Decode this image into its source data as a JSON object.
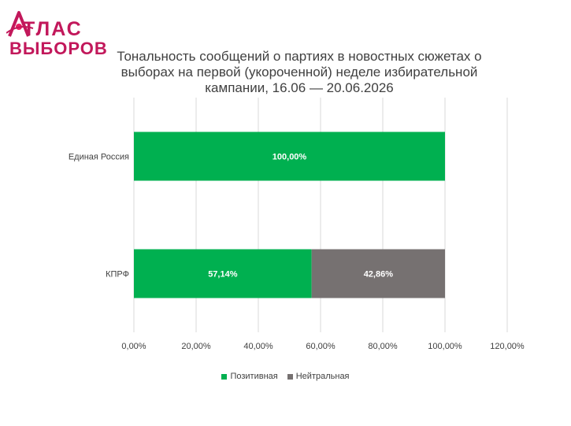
{
  "logo": {
    "line1": "ТЛАС",
    "line2": "ВЫБОРОВ"
  },
  "colors": {
    "brand": "#c2185b",
    "positive": "#00b050",
    "neutral": "#767171",
    "grid": "#d9d9d9"
  },
  "chart_data": {
    "type": "bar",
    "orientation": "horizontal",
    "stacked": true,
    "title": "Тональность сообщений о партиях в новостных сюжетах о выборах на первой (укороченной) неделе избирательной кампании, 16.06 — 20.06.2026",
    "categories": [
      "Единая Россия",
      "КПРФ"
    ],
    "series": [
      {
        "name": "Позитивная",
        "values": [
          100.0,
          57.14
        ],
        "labels": [
          "100,00%",
          "57,14%"
        ],
        "color": "#00b050"
      },
      {
        "name": "Нейтральная",
        "values": [
          0.0,
          42.86
        ],
        "labels": [
          "",
          "42,86%"
        ],
        "color": "#767171"
      }
    ],
    "xlim": [
      0,
      120
    ],
    "xticks": [
      0,
      20,
      40,
      60,
      80,
      100,
      120
    ],
    "xtick_labels": [
      "0,00%",
      "20,00%",
      "40,00%",
      "60,00%",
      "80,00%",
      "100,00%",
      "120,00%"
    ],
    "grid": true,
    "legend_position": "bottom"
  }
}
